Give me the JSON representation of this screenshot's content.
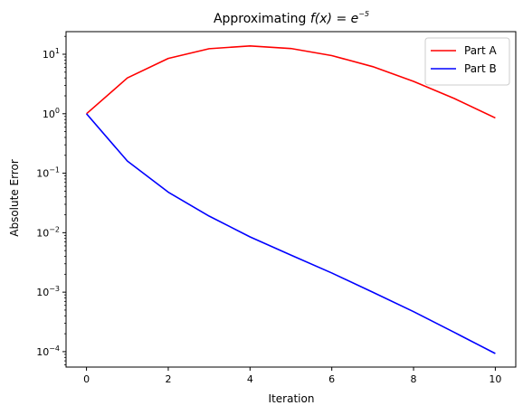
{
  "chart_data": {
    "type": "line",
    "title_prefix": "Approximating ",
    "title_math": "f(x) = e",
    "title_sup": "−5",
    "xlabel": "Iteration",
    "ylabel": "Absolute Error",
    "xlim": [
      -0.5,
      10.5
    ],
    "ylim": [
      5.5e-05,
      24
    ],
    "yscale": "log",
    "grid": false,
    "legend_position": "top-right",
    "x_ticks": [
      0,
      2,
      4,
      6,
      8,
      10
    ],
    "x_tick_labels": [
      "0",
      "2",
      "4",
      "6",
      "8",
      "10"
    ],
    "y_ticks": [
      0.0001,
      0.001,
      0.01,
      0.1,
      1,
      10
    ],
    "y_tick_base": "10",
    "y_tick_exponents": [
      "−4",
      "−3",
      "−2",
      "−1",
      "0",
      "1"
    ],
    "x": [
      0,
      1,
      2,
      3,
      4,
      5,
      6,
      7,
      8,
      9,
      10
    ],
    "series": [
      {
        "name": "Part A",
        "color": "#ff0000",
        "values": [
          1.0,
          4.0,
          8.5,
          12.4,
          13.8,
          12.5,
          9.5,
          6.2,
          3.5,
          1.8,
          0.85
        ]
      },
      {
        "name": "Part B",
        "color": "#0000ff",
        "values": [
          1.0,
          0.16,
          0.048,
          0.019,
          0.0085,
          0.0042,
          0.0021,
          0.001,
          0.00047,
          0.00021,
          9.3e-05
        ]
      }
    ]
  }
}
